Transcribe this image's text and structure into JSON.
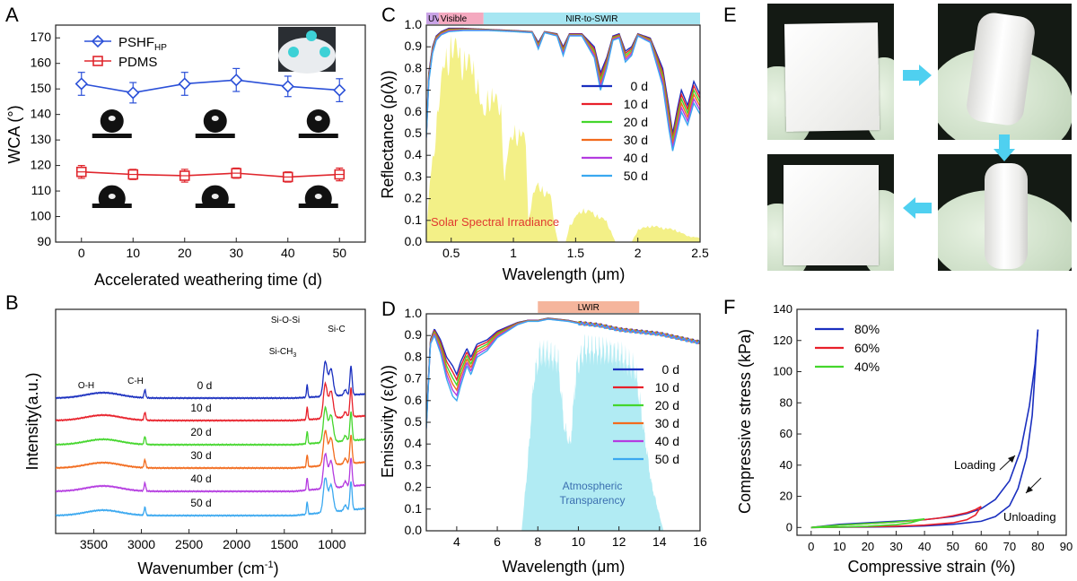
{
  "panels": {
    "A": {
      "letter": "A"
    },
    "B": {
      "letter": "B"
    },
    "C": {
      "letter": "C"
    },
    "D": {
      "letter": "D"
    },
    "E": {
      "letter": "E"
    },
    "F": {
      "letter": "F"
    }
  },
  "colors": {
    "d0": "#1a2fbf",
    "d10": "#e8202a",
    "d20": "#44d62c",
    "d30": "#f26b1d",
    "d40": "#b43be0",
    "d50": "#3aa8f0",
    "pshf": "#2b50d8",
    "pdms": "#e0262d",
    "solar": "#f2ee7a",
    "atm": "#a9e9f2",
    "uv_band": "#c9a3e6",
    "vis_band": "#f4a9bf",
    "nir_band": "#a6e6f2",
    "lwir_band": "#f5b59c"
  },
  "chart_data": [
    {
      "panel": "A",
      "type": "line",
      "xlabel": "Accelerated weathering time (d)",
      "ylabel": "WCA (°)",
      "xlim": [
        -5,
        55
      ],
      "ylim": [
        90,
        175
      ],
      "x_ticks": [
        0,
        10,
        20,
        30,
        40,
        50
      ],
      "y_ticks": [
        90,
        100,
        110,
        120,
        130,
        140,
        150,
        160,
        170
      ],
      "x": [
        0,
        10,
        20,
        30,
        40,
        50
      ],
      "series": [
        {
          "name": "PSHF",
          "name_sub": "HP",
          "values": [
            152,
            148.5,
            152,
            153.5,
            151,
            149.5
          ],
          "errors": [
            4.5,
            4,
            4.5,
            4.5,
            4,
            4.5
          ],
          "marker": "diamond",
          "color_key": "pshf"
        },
        {
          "name": "PDMS",
          "values": [
            117.5,
            116.5,
            116,
            117,
            115.5,
            116.5
          ],
          "errors": [
            2.5,
            2,
            2.5,
            2,
            2,
            2.5
          ],
          "marker": "square",
          "color_key": "pdms"
        }
      ]
    },
    {
      "panel": "B",
      "type": "line",
      "xlabel": "Wavenumber (cm",
      "xlabel_sup": "-1",
      "xlabel_end": ")",
      "ylabel": "Intensity(a.u.)",
      "xlim": [
        3900,
        650
      ],
      "x_ticks": [
        3500,
        3000,
        2500,
        2000,
        1500,
        1000
      ],
      "series_labels": [
        "0 d",
        "10 d",
        "20 d",
        "30 d",
        "40 d",
        "50 d"
      ],
      "peak_labels": {
        "oh": "O-H",
        "ch": "C-H",
        "sich3": "Si-CH",
        "sich3_sub": "3",
        "siosi": "Si-O-Si",
        "sic": "Si-C"
      },
      "peaks_cm": {
        "oh": 3400,
        "ch": 2963,
        "sich3": 1260,
        "siosi": 1070,
        "siosi2": 1010,
        "sic": 800
      }
    },
    {
      "panel": "C",
      "type": "line",
      "xlabel": "Wavelength (μm)",
      "ylabel": "Reflectance (ρ(λ))",
      "xlim": [
        0.3,
        2.5
      ],
      "ylim": [
        0,
        1.0
      ],
      "x_ticks": [
        0.5,
        1.0,
        1.5,
        2.0,
        2.5
      ],
      "y_ticks": [
        0.0,
        0.1,
        0.2,
        0.3,
        0.4,
        0.5,
        0.6,
        0.7,
        0.8,
        0.9,
        1.0
      ],
      "bands": [
        "UV",
        "Visible",
        "NIR-to-SWIR"
      ],
      "band_edges": [
        0.3,
        0.4,
        0.76,
        2.5
      ],
      "legend": [
        "0 d",
        "10 d",
        "20 d",
        "30 d",
        "40 d",
        "50 d"
      ],
      "fill_label": "Solar Spectral Irradiance",
      "reflectance_0d": {
        "x": [
          0.3,
          0.32,
          0.35,
          0.38,
          0.42,
          0.48,
          0.6,
          0.8,
          1.0,
          1.15,
          1.2,
          1.25,
          1.35,
          1.4,
          1.45,
          1.55,
          1.65,
          1.7,
          1.75,
          1.8,
          1.85,
          1.9,
          1.95,
          2.0,
          2.1,
          2.2,
          2.25,
          2.28,
          2.32,
          2.35,
          2.4,
          2.45,
          2.5
        ],
        "y": [
          0.5,
          0.78,
          0.9,
          0.95,
          0.97,
          0.985,
          0.985,
          0.98,
          0.975,
          0.97,
          0.92,
          0.97,
          0.96,
          0.9,
          0.96,
          0.96,
          0.9,
          0.78,
          0.85,
          0.95,
          0.96,
          0.88,
          0.9,
          0.96,
          0.94,
          0.8,
          0.62,
          0.5,
          0.62,
          0.7,
          0.63,
          0.74,
          0.68
        ]
      },
      "reflectance_50d": {
        "x": [
          0.3,
          0.32,
          0.35,
          0.38,
          0.42,
          0.48,
          0.6,
          0.8,
          1.0,
          1.15,
          1.2,
          1.25,
          1.35,
          1.4,
          1.45,
          1.55,
          1.65,
          1.7,
          1.75,
          1.8,
          1.85,
          1.9,
          1.95,
          2.0,
          2.1,
          2.2,
          2.25,
          2.28,
          2.32,
          2.35,
          2.4,
          2.45,
          2.5
        ],
        "y": [
          0.48,
          0.74,
          0.87,
          0.93,
          0.955,
          0.97,
          0.975,
          0.975,
          0.97,
          0.965,
          0.89,
          0.965,
          0.95,
          0.86,
          0.95,
          0.95,
          0.85,
          0.7,
          0.8,
          0.93,
          0.94,
          0.83,
          0.86,
          0.95,
          0.92,
          0.72,
          0.52,
          0.42,
          0.52,
          0.6,
          0.54,
          0.64,
          0.59
        ]
      },
      "solar": {
        "x": [
          0.3,
          0.33,
          0.36,
          0.4,
          0.45,
          0.5,
          0.55,
          0.6,
          0.7,
          0.76,
          0.8,
          0.9,
          0.93,
          0.95,
          1.0,
          1.1,
          1.12,
          1.15,
          1.2,
          1.25,
          1.3,
          1.34,
          1.36,
          1.42,
          1.45,
          1.55,
          1.65,
          1.75,
          1.8,
          1.82,
          1.95,
          2.0,
          2.1,
          2.3,
          2.4,
          2.5
        ],
        "y": [
          0.03,
          0.3,
          0.45,
          0.7,
          0.88,
          0.97,
          0.93,
          0.9,
          0.83,
          0.6,
          0.74,
          0.65,
          0.3,
          0.42,
          0.55,
          0.5,
          0.1,
          0.22,
          0.28,
          0.25,
          0.22,
          0.05,
          0.0,
          0.0,
          0.08,
          0.16,
          0.14,
          0.1,
          0.03,
          0.0,
          0.0,
          0.06,
          0.08,
          0.06,
          0.03,
          0.02
        ]
      }
    },
    {
      "panel": "D",
      "type": "line",
      "xlabel": "Wavelength (μm)",
      "ylabel": "Emissivity (ε(λ))",
      "xlim": [
        2.5,
        16
      ],
      "ylim": [
        0,
        1.0
      ],
      "x_ticks": [
        4,
        6,
        8,
        10,
        12,
        14,
        16
      ],
      "y_ticks": [
        0.0,
        0.1,
        0.2,
        0.3,
        0.4,
        0.5,
        0.6,
        0.7,
        0.8,
        0.9,
        1.0
      ],
      "band_label": "LWIR",
      "band_range": [
        8,
        13
      ],
      "legend": [
        "0 d",
        "10 d",
        "20 d",
        "30 d",
        "40 d",
        "50 d"
      ],
      "fill_label_1": "Atmospheric",
      "fill_label_2": "Transparency",
      "emissivity_0d": {
        "x": [
          2.5,
          2.7,
          2.9,
          3.2,
          3.5,
          3.8,
          4.0,
          4.2,
          4.5,
          4.7,
          5.0,
          5.5,
          6.0,
          6.5,
          7.0,
          7.5,
          8.0,
          8.5,
          9.0,
          9.5,
          10,
          11,
          12,
          13,
          14,
          15,
          16
        ],
        "y": [
          0.5,
          0.88,
          0.93,
          0.88,
          0.8,
          0.76,
          0.72,
          0.78,
          0.84,
          0.8,
          0.86,
          0.88,
          0.92,
          0.94,
          0.96,
          0.97,
          0.97,
          0.98,
          0.975,
          0.97,
          0.96,
          0.95,
          0.93,
          0.92,
          0.91,
          0.89,
          0.87
        ]
      },
      "emissivity_50d": {
        "x": [
          2.5,
          2.7,
          2.9,
          3.2,
          3.5,
          3.8,
          4.0,
          4.2,
          4.5,
          4.7,
          5.0,
          5.5,
          6.0,
          6.5,
          7.0,
          7.5,
          8.0,
          8.5,
          9.0,
          9.5,
          10,
          11,
          12,
          13,
          14,
          15,
          16
        ],
        "y": [
          0.47,
          0.86,
          0.9,
          0.82,
          0.7,
          0.62,
          0.6,
          0.67,
          0.76,
          0.72,
          0.8,
          0.83,
          0.89,
          0.92,
          0.95,
          0.965,
          0.965,
          0.975,
          0.97,
          0.965,
          0.955,
          0.945,
          0.925,
          0.915,
          0.905,
          0.885,
          0.865
        ]
      },
      "atm": {
        "x": [
          7.2,
          7.5,
          7.8,
          8.1,
          8.5,
          9.0,
          9.3,
          9.6,
          9.9,
          10.3,
          11,
          12,
          12.8,
          13.2,
          13.6,
          14.0,
          14.2
        ],
        "y": [
          0.0,
          0.35,
          0.8,
          0.93,
          0.93,
          0.9,
          0.55,
          0.45,
          0.85,
          0.96,
          0.95,
          0.93,
          0.85,
          0.55,
          0.25,
          0.08,
          0.0
        ]
      }
    },
    {
      "panel": "F",
      "type": "line",
      "xlabel": "Compressive strain (%)",
      "ylabel": "Compressive stress (kPa)",
      "xlim": [
        -5,
        90
      ],
      "ylim": [
        -5,
        140
      ],
      "x_ticks": [
        0,
        10,
        20,
        30,
        40,
        50,
        60,
        70,
        80,
        90
      ],
      "y_ticks": [
        0,
        20,
        40,
        60,
        80,
        100,
        120,
        140
      ],
      "annotations": {
        "loading": "Loading",
        "unloading": "Unloading"
      },
      "series": [
        {
          "name": "80%",
          "color_key": "d0",
          "loading_x": [
            0,
            10,
            20,
            30,
            40,
            50,
            55,
            60,
            65,
            70,
            74,
            77,
            79,
            80
          ],
          "loading_y": [
            0,
            2,
            3,
            4,
            5,
            7,
            9,
            12,
            18,
            30,
            50,
            78,
            105,
            127
          ],
          "unloading_x": [
            80,
            79,
            78,
            76,
            73,
            70,
            65,
            60,
            50,
            40,
            30,
            20,
            10,
            0
          ],
          "unloading_y": [
            127,
            100,
            72,
            45,
            25,
            14,
            7,
            4,
            2,
            1,
            0.5,
            0.3,
            0.2,
            0
          ]
        },
        {
          "name": "60%",
          "color_key": "d10",
          "loading_x": [
            0,
            10,
            20,
            30,
            40,
            45,
            50,
            55,
            58,
            60
          ],
          "loading_y": [
            0,
            1.5,
            2.5,
            3.5,
            5,
            6,
            7.5,
            9.5,
            11.5,
            13.5
          ],
          "unloading_x": [
            60,
            58,
            55,
            50,
            40,
            30,
            20,
            10,
            0
          ],
          "unloading_y": [
            13.5,
            8,
            5,
            3,
            1.5,
            0.8,
            0.5,
            0.2,
            0
          ]
        },
        {
          "name": "40%",
          "color_key": "d20",
          "loading_x": [
            0,
            10,
            20,
            30,
            35,
            40
          ],
          "loading_y": [
            0,
            1.5,
            2.5,
            3.5,
            4.5,
            5.5
          ],
          "unloading_x": [
            40,
            35,
            30,
            20,
            10,
            0
          ],
          "unloading_y": [
            5.5,
            3,
            1.8,
            0.8,
            0.3,
            0
          ]
        }
      ]
    }
  ]
}
